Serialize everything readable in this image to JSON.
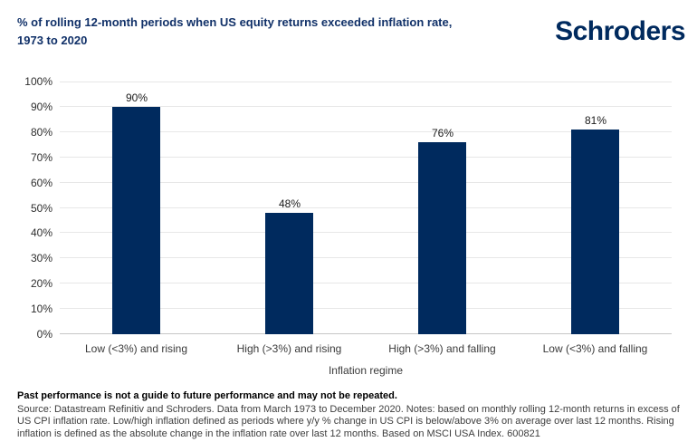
{
  "header": {
    "title_line1": "% of rolling 12-month periods when US equity returns exceeded inflation rate,",
    "title_line2": "1973 to 2020",
    "logo_text": "Schroders"
  },
  "chart_data": {
    "type": "bar",
    "title": "% of rolling 12-month periods when US equity returns exceeded inflation rate, 1973 to 2020",
    "categories": [
      "Low (<3%) and rising",
      "High (>3%) and rising",
      "High (>3%) and falling",
      "Low (<3%) and falling"
    ],
    "values": [
      90,
      48,
      76,
      81
    ],
    "value_labels": [
      "90%",
      "48%",
      "76%",
      "81%"
    ],
    "xlabel": "Inflation regime",
    "ylabel": "",
    "ylim": [
      0,
      100
    ],
    "ytick_step": 10,
    "ytick_suffix": "%",
    "grid": true,
    "legend": "none",
    "bar_color": "#002a5e"
  },
  "footer": {
    "bold_line": "Past performance is not a guide to future performance and may not be repeated.",
    "source_text": "Source: Datastream Refinitiv and Schroders. Data from March 1973 to December 2020. Notes: based on monthly rolling 12-month returns in excess of US CPI inflation rate. Low/high inflation defined as periods where y/y % change in US CPI is below/above 3% on average over last 12 months. Rising inflation is defined as the absolute change in the inflation rate over last 12 months. Based on MSCI USA Index. 600821"
  },
  "colors": {
    "navy": "#002a5e",
    "title_navy": "#103068",
    "gridline": "#e7e7e7",
    "axis_line": "#c6c6c6",
    "tick_text": "#3a3a3a",
    "footer_text": "#3d3d3d"
  }
}
